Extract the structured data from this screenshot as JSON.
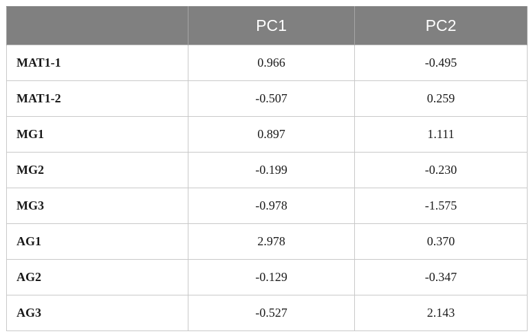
{
  "table": {
    "headers": [
      "",
      "PC1",
      "PC2"
    ],
    "rows": [
      {
        "label": "MAT1-1",
        "pc1": "0.966",
        "pc2": "-0.495"
      },
      {
        "label": "MAT1-2",
        "pc1": "-0.507",
        "pc2": "0.259"
      },
      {
        "label": "MG1",
        "pc1": "0.897",
        "pc2": "1.111"
      },
      {
        "label": "MG2",
        "pc1": "-0.199",
        "pc2": "-0.230"
      },
      {
        "label": "MG3",
        "pc1": "-0.978",
        "pc2": "-1.575"
      },
      {
        "label": "AG1",
        "pc1": "2.978",
        "pc2": "0.370"
      },
      {
        "label": "AG2",
        "pc1": "-0.129",
        "pc2": "-0.347"
      },
      {
        "label": "AG3",
        "pc1": "-0.527",
        "pc2": "2.143"
      }
    ]
  },
  "colors": {
    "header_background": "#808080",
    "header_text": "#ffffff",
    "grid_line": "#c8c8c8"
  }
}
